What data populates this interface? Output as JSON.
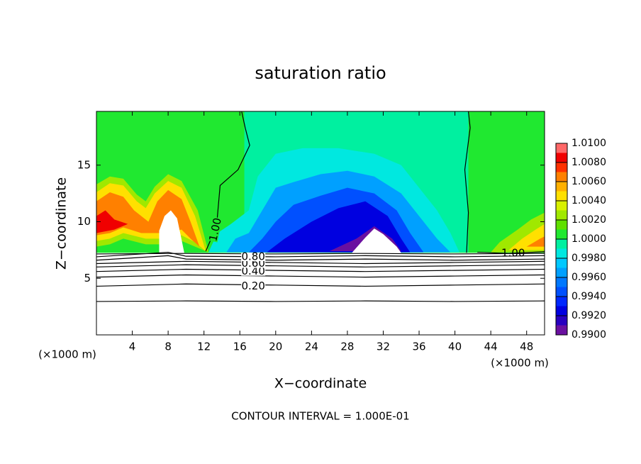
{
  "chart_data": {
    "type": "contour",
    "title": "saturation ratio",
    "x_label": "X−coordinate",
    "y_label": "Z−coordinate",
    "x_unit": "(×1000 m)",
    "y_unit": "(×1000 m)",
    "footnote": "CONTOUR INTERVAL = 1.000E-01",
    "xlim": [
      0,
      50
    ],
    "ylim": [
      0,
      19.75
    ],
    "xticks": [
      4,
      8,
      12,
      16,
      20,
      24,
      28,
      32,
      36,
      40,
      44,
      48
    ],
    "yticks": [
      5,
      10,
      15
    ],
    "colorbar": {
      "levels": [
        0.99,
        0.991,
        0.992,
        0.993,
        0.994,
        0.995,
        0.996,
        0.997,
        0.998,
        0.999,
        1.0,
        1.001,
        1.002,
        1.003,
        1.004,
        1.005,
        1.006,
        1.007,
        1.008,
        1.009,
        1.01
      ],
      "colors": [
        "#6a10a0",
        "#2800c0",
        "#0000e0",
        "#0028ff",
        "#0050ff",
        "#0078ff",
        "#00a0ff",
        "#00c8ff",
        "#00e8e0",
        "#00f0a0",
        "#20e830",
        "#60e000",
        "#a0e800",
        "#d8f000",
        "#ffe000",
        "#ffb000",
        "#ff8000",
        "#ff3000",
        "#f00000",
        "#ff6868"
      ],
      "ticks": [
        {
          "value": 0.99,
          "label": "0.9900"
        },
        {
          "value": 0.992,
          "label": "0.9920"
        },
        {
          "value": 0.994,
          "label": "0.9940"
        },
        {
          "value": 0.996,
          "label": "0.9960"
        },
        {
          "value": 0.998,
          "label": "0.9980"
        },
        {
          "value": 1.0,
          "label": "1.0000"
        },
        {
          "value": 1.002,
          "label": "1.0020"
        },
        {
          "value": 1.004,
          "label": "1.0040"
        },
        {
          "value": 1.006,
          "label": "1.0060"
        },
        {
          "value": 1.008,
          "label": "1.0080"
        },
        {
          "value": 1.01,
          "label": "1.0100"
        }
      ]
    },
    "background_level": 1.0,
    "regions": [
      {
        "level": 0.999,
        "x": [
          16.5,
          16.5,
          41.5,
          41.5
        ],
        "y": [
          7.3,
          19.75,
          19.75,
          7.3
        ]
      },
      {
        "level": 1.002,
        "x": [
          0,
          0,
          1.5,
          3,
          4.5,
          5.5,
          6.5,
          8,
          9.5,
          11.3,
          12.5,
          11,
          9.5,
          7,
          5.5,
          3,
          1.5
        ],
        "y": [
          7.8,
          13.3,
          14,
          13.8,
          12.4,
          11.8,
          13.1,
          14.2,
          13.6,
          11,
          7.3,
          7.8,
          8.3,
          8,
          8,
          8.5,
          8
        ]
      },
      {
        "level": 1.004,
        "x": [
          0,
          0,
          1.5,
          3,
          4.5,
          5.5,
          6.5,
          8,
          9.5,
          11,
          12.2,
          11,
          9.5,
          7,
          5.5,
          3,
          1.5
        ],
        "y": [
          8.3,
          12.6,
          13.4,
          13.2,
          11.8,
          11.2,
          12.5,
          13.6,
          13,
          10.5,
          7.4,
          8.2,
          8.8,
          8.5,
          8.5,
          9,
          8.5
        ]
      },
      {
        "level": 1.006,
        "x": [
          0,
          0,
          1.5,
          3,
          4.2,
          5.8,
          6.8,
          8,
          9.5,
          10.5,
          11.5,
          10.5,
          9.5,
          7,
          5,
          3,
          1.5
        ],
        "y": [
          8.8,
          11.8,
          12.6,
          12.2,
          11,
          10,
          11.8,
          12.8,
          12,
          10,
          7.8,
          8.5,
          9.3,
          9,
          9,
          9.5,
          9
        ]
      },
      {
        "level": 1.008,
        "x": [
          0,
          0,
          1,
          2,
          3.5,
          2
        ],
        "y": [
          9,
          10.5,
          11,
          10.2,
          9.8,
          9.3
        ]
      },
      {
        "level": 0.998,
        "x": [
          12.5,
          13.5,
          15,
          17,
          18,
          20,
          23,
          27,
          31,
          34,
          36,
          38,
          39.5,
          40.5
        ],
        "y": [
          7.3,
          9,
          9.8,
          11,
          14,
          16,
          16.5,
          16.5,
          16,
          15,
          13,
          11,
          9,
          7.3
        ]
      },
      {
        "level": 0.996,
        "x": [
          14.5,
          15.5,
          17,
          18.5,
          20,
          22,
          25,
          28,
          31,
          34,
          36,
          38,
          39.5
        ],
        "y": [
          7.3,
          8.5,
          9,
          11,
          13,
          13.5,
          14.2,
          14.5,
          14,
          12.5,
          10.5,
          8.5,
          7.3
        ]
      },
      {
        "level": 0.994,
        "x": [
          17,
          18.5,
          20,
          22,
          25,
          28,
          31,
          33.5,
          35,
          36.5
        ],
        "y": [
          7.3,
          8.5,
          10,
          11.5,
          12.3,
          13,
          12.5,
          11,
          9,
          7.3
        ]
      },
      {
        "level": 0.992,
        "x": [
          19,
          21,
          24,
          27,
          30,
          32.5,
          34,
          35
        ],
        "y": [
          7.3,
          8.5,
          10,
          11.2,
          11.8,
          10.5,
          8.5,
          7.3
        ]
      },
      {
        "level": 0.99,
        "x": [
          26,
          29,
          31,
          33,
          34
        ],
        "y": [
          7.4,
          8.5,
          9.6,
          8.5,
          7.4
        ]
      },
      {
        "level": 1.002,
        "x": [
          44,
          45,
          47,
          48.5,
          50,
          50
        ],
        "y": [
          7.3,
          8.2,
          9.3,
          10.2,
          10.8,
          7.3
        ]
      },
      {
        "level": 1.004,
        "x": [
          46,
          47.5,
          49,
          50,
          50
        ],
        "y": [
          7.5,
          8.5,
          9.3,
          9.8,
          7.5
        ]
      },
      {
        "level": 1.006,
        "x": [
          48,
          49.5,
          50,
          50
        ],
        "y": [
          7.8,
          8.5,
          8.7,
          7.8
        ]
      }
    ],
    "contours": [
      {
        "level": 0.1,
        "x": [
          0,
          10,
          20,
          30,
          40,
          50
        ],
        "y": [
          2.95,
          3.0,
          2.95,
          3.0,
          2.95,
          3.0
        ]
      },
      {
        "level": 0.2,
        "label": "0.20",
        "x": [
          0,
          10,
          20,
          30,
          40,
          50
        ],
        "y": [
          4.3,
          4.5,
          4.4,
          4.3,
          4.4,
          4.5
        ]
      },
      {
        "level": 0.3,
        "x": [
          0,
          10,
          20,
          30,
          40,
          50
        ],
        "y": [
          5.1,
          5.3,
          5.2,
          5.1,
          5.2,
          5.3
        ]
      },
      {
        "level": 0.4,
        "label": "0.40",
        "x": [
          0,
          10,
          20,
          30,
          40,
          50
        ],
        "y": [
          5.6,
          5.8,
          5.7,
          5.6,
          5.7,
          5.8
        ]
      },
      {
        "level": 0.5,
        "x": [
          0,
          10,
          20,
          30,
          40,
          50
        ],
        "y": [
          6.0,
          6.2,
          6.1,
          6.0,
          6.1,
          6.2
        ]
      },
      {
        "level": 0.6,
        "label": "0.60",
        "x": [
          0,
          10,
          20,
          30,
          40,
          50
        ],
        "y": [
          6.3,
          6.5,
          6.4,
          6.3,
          6.4,
          6.5
        ]
      },
      {
        "level": 0.7,
        "x": [
          0,
          8,
          10,
          20,
          30,
          40,
          50
        ],
        "y": [
          6.6,
          7.0,
          6.7,
          6.6,
          6.7,
          6.6,
          6.7
        ]
      },
      {
        "level": 0.8,
        "label": "0.80",
        "x": [
          0,
          8,
          10,
          20,
          30,
          40,
          50
        ],
        "y": [
          6.9,
          7.3,
          6.95,
          6.9,
          7.0,
          6.9,
          7.0
        ]
      },
      {
        "level": 0.9,
        "x": [
          0,
          10,
          20,
          30,
          40,
          50
        ],
        "y": [
          7.15,
          7.2,
          7.15,
          7.2,
          7.15,
          7.2
        ]
      },
      {
        "level": 1.0,
        "label": "1.00",
        "x": [
          12.2,
          13.4,
          13.8,
          15.8,
          17.1,
          16.6,
          16.2
        ],
        "y": [
          7.4,
          9.6,
          13.2,
          14.6,
          16.75,
          18.3,
          19.75
        ]
      },
      {
        "level": 1.0,
        "x": [
          41.3,
          41.5,
          41.1,
          41.7,
          41.5
        ],
        "y": [
          7.25,
          10.8,
          14.6,
          18.3,
          19.75
        ]
      },
      {
        "level": 1.0,
        "label": "1.00",
        "x": [
          42.5,
          46,
          50
        ],
        "y": [
          7.3,
          7.2,
          7.35
        ]
      }
    ]
  }
}
